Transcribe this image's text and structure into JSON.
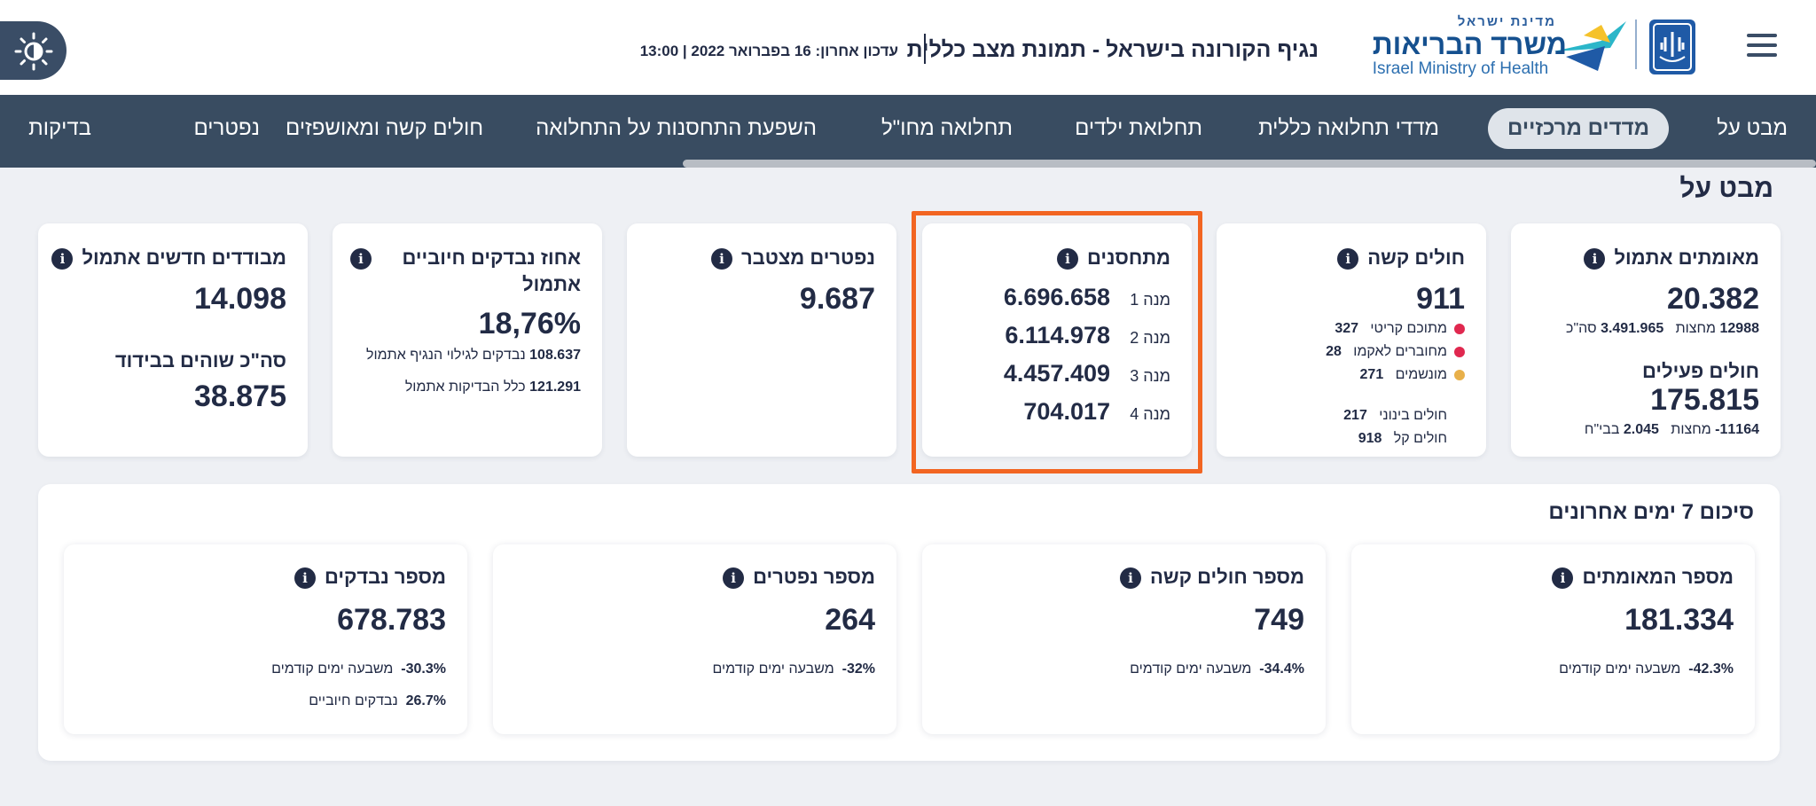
{
  "header": {
    "state_label": "מדינת ישראל",
    "ministry_name": "משרד הבריאות",
    "ministry_en": "Israel Ministry of Health",
    "page_heading": "נגיף הקורונה בישראל - תמונת מצב כללית",
    "last_update": "עדכון אחרון: 16 בפברואר 2022 | 13:00"
  },
  "nav": {
    "items": [
      {
        "label": "מבט על"
      },
      {
        "label": "מדדים מרכזיים"
      },
      {
        "label": "מדדי תחלואה כללית"
      },
      {
        "label": "תחלואת ילדים"
      },
      {
        "label": "תחלואה מחו\"ל"
      },
      {
        "label": "השפעת התחסנות על התחלואה"
      },
      {
        "label": "חולים קשה ומאושפזים"
      },
      {
        "label": "נפטרים"
      },
      {
        "label": "בדיקות"
      }
    ],
    "active": "מדדים מרכזיים"
  },
  "section_title": "מבט על",
  "cards": {
    "confirmed": {
      "title": "מאומתים אתמול",
      "value": "20.382",
      "line1_value": "12988",
      "line1_label": "מחצות",
      "line1_total_value": "3.491.965",
      "line1_total_label": "סה\"כ",
      "active_title": "חולים פעילים",
      "active_value": "175.815",
      "line2_value": "-11164",
      "line2_label": "מחצות",
      "line2_hosp_value": "2.045",
      "line2_hosp_label": "בבי\"ח"
    },
    "severe": {
      "title": "חולים קשה",
      "value": "911",
      "rows": [
        {
          "label": "מתוכם קריטי",
          "value": "327",
          "color": "#e0284f"
        },
        {
          "label": "מחוברים לאקמו",
          "value": "28",
          "color": "#e0284f"
        },
        {
          "label": "מונשמים",
          "value": "271",
          "color": "#e8b04a"
        }
      ],
      "moderate_label": "חולים בינוני",
      "moderate_value": "217",
      "mild_label": "חולים קל",
      "mild_value": "918"
    },
    "vaccinated": {
      "title": "מתחסנים",
      "doses": [
        {
          "label": "מנה 1",
          "value": "6.696.658"
        },
        {
          "label": "מנה 2",
          "value": "6.114.978"
        },
        {
          "label": "מנה 3",
          "value": "4.457.409"
        },
        {
          "label": "מנה 4",
          "value": "704.017"
        }
      ]
    },
    "deaths": {
      "title": "נפטרים מצטבר",
      "value": "9.687"
    },
    "positive_rate": {
      "title": "אחוז נבדקים חיוביים אתמול",
      "value": "18,76%",
      "line1_value": "108.637",
      "line1_label": "נבדקים לגילוי הנגיף אתמול",
      "line2_value": "121.291",
      "line2_label": "כלל הבדיקות אתמול"
    },
    "isolation": {
      "title": "מבודדים חדשים אתמול",
      "value": "14.098",
      "sub_title": "סה\"כ שוהים בבידוד",
      "sub_value": "38.875"
    }
  },
  "summary": {
    "title": "סיכום 7 ימים אחרונים",
    "cards": [
      {
        "title": "מספר המאומתים",
        "value": "181.334",
        "change": "-42.3%",
        "change_label": "משבעה ימים קודמים"
      },
      {
        "title": "מספר חולים קשה",
        "value": "749",
        "change": "-34.4%",
        "change_label": "משבעה ימים קודמים"
      },
      {
        "title": "מספר נפטרים",
        "value": "264",
        "change": "-32%",
        "change_label": "משבעה ימים קודמים"
      },
      {
        "title": "מספר נבדקים",
        "value": "678.783",
        "change": "-30.3%",
        "change_label": "משבעה ימים קודמים",
        "positive_value": "26.7%",
        "positive_label": "נבדקים חיוביים"
      }
    ]
  }
}
